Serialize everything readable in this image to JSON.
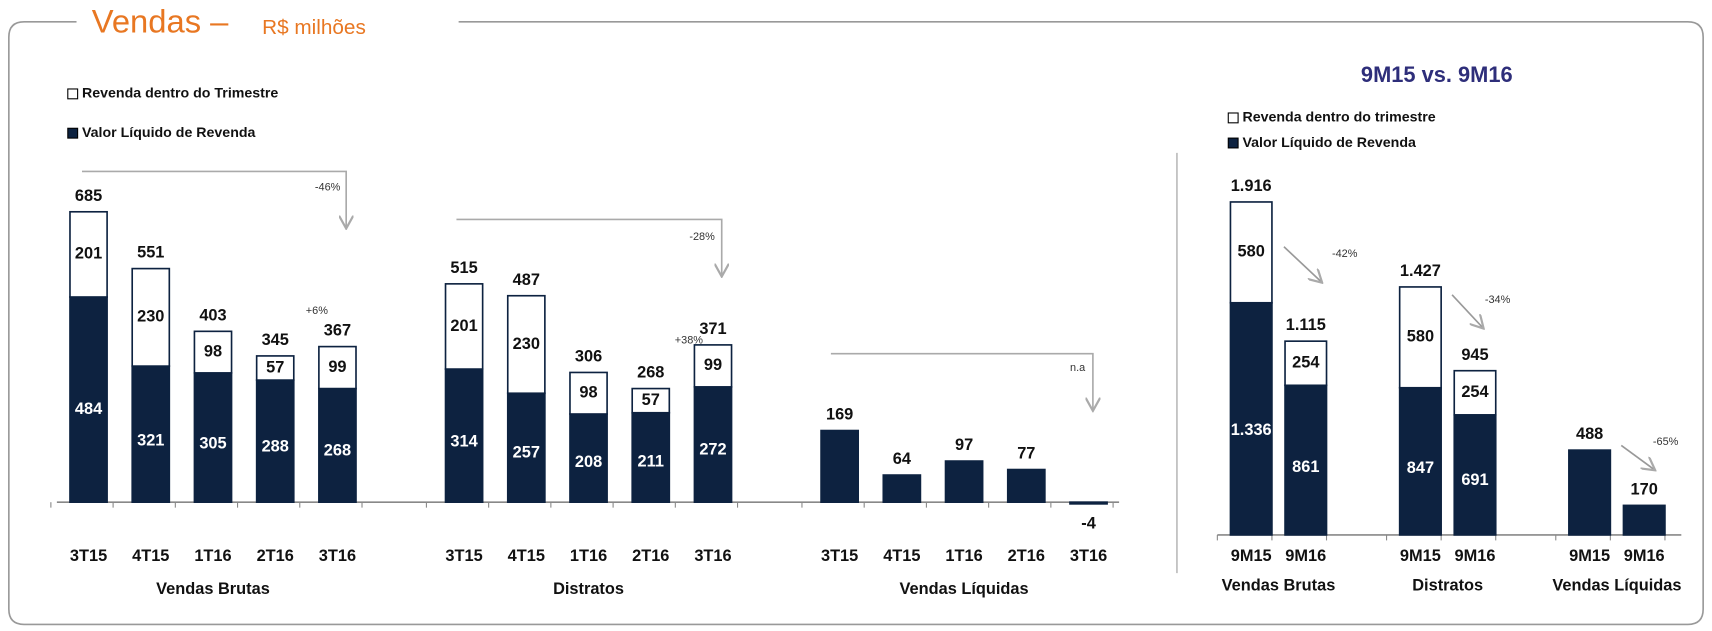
{
  "title": "Vendas –",
  "subtitle": "R$ milhões",
  "chart_data": [
    {
      "type": "stacked_bar",
      "series": [
        {
          "name": "Valor Líquido de Revenda",
          "color": "#0d2240"
        },
        {
          "name": "Revenda dentro do Trimestre",
          "color": "#ffffff"
        }
      ],
      "groups": [
        {
          "name": "Vendas Brutas",
          "categories": [
            "3T15",
            "4T15",
            "1T16",
            "2T16",
            "3T16"
          ],
          "values": [
            [
              484,
              321,
              305,
              288,
              268
            ],
            [
              201,
              230,
              98,
              57,
              99
            ]
          ],
          "totals": [
            685,
            551,
            403,
            345,
            367
          ],
          "change": "-46%",
          "last_change": "+6%"
        },
        {
          "name": "Distratos",
          "categories": [
            "3T15",
            "4T15",
            "1T16",
            "2T16",
            "3T16"
          ],
          "values": [
            [
              314,
              257,
              208,
              211,
              272
            ],
            [
              201,
              230,
              98,
              57,
              99
            ]
          ],
          "totals": [
            515,
            487,
            306,
            268,
            371
          ],
          "change": "-28%",
          "last_change": "+38%"
        },
        {
          "name": "Vendas Líquidas",
          "categories": [
            "3T15",
            "4T15",
            "1T16",
            "2T16",
            "3T16"
          ],
          "values": [
            [
              169,
              64,
              97,
              77,
              -4
            ]
          ],
          "change": "n.a"
        }
      ]
    },
    {
      "type": "stacked_bar",
      "title": "9M15 vs. 9M16",
      "series": [
        {
          "name": "Valor Líquido de Revenda",
          "color": "#0d2240"
        },
        {
          "name": "Revenda dentro do trimestre",
          "color": "#ffffff"
        }
      ],
      "groups": [
        {
          "name": "Vendas Brutas",
          "categories": [
            "9M15",
            "9M16"
          ],
          "values": [
            [
              1336,
              861
            ],
            [
              580,
              254
            ]
          ],
          "value_labels": [
            [
              "1.336",
              "861"
            ],
            [
              "580",
              "254"
            ]
          ],
          "totals": [
            1916,
            1115
          ],
          "total_labels": [
            "1.916",
            "1.115"
          ],
          "change": "-42%"
        },
        {
          "name": "Distratos",
          "categories": [
            "9M15",
            "9M16"
          ],
          "values": [
            [
              847,
              691
            ],
            [
              580,
              254
            ]
          ],
          "totals": [
            1427,
            945
          ],
          "total_labels": [
            "1.427",
            "945"
          ],
          "change": "-34%"
        },
        {
          "name": "Vendas Líquidas",
          "categories": [
            "9M15",
            "9M16"
          ],
          "values": [
            [
              488,
              170
            ]
          ],
          "change": "-65%"
        }
      ]
    }
  ]
}
